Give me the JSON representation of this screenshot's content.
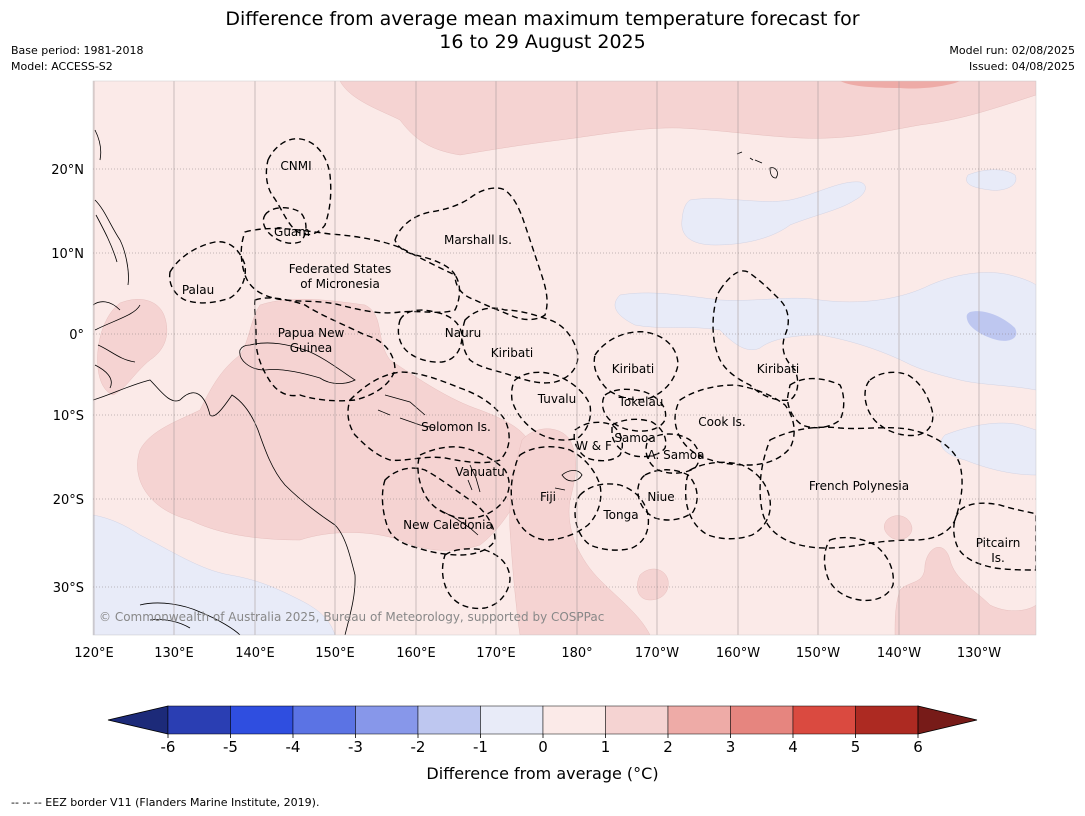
{
  "title_line1": "Difference from average mean maximum temperature forecast for",
  "title_line2": "16 to 29 August 2025",
  "meta_left": {
    "base_period": "Base period: 1981-2018",
    "model": "Model: ACCESS-S2"
  },
  "meta_right": {
    "model_run": "Model run: 02/08/2025",
    "issued": "Issued: 04/08/2025"
  },
  "map": {
    "lon_ticks": [
      "120°E",
      "130°E",
      "140°E",
      "150°E",
      "160°E",
      "170°E",
      "180°",
      "170°W",
      "160°W",
      "150°W",
      "140°W",
      "130°W"
    ],
    "lat_ticks": [
      "20°N",
      "10°N",
      "0°",
      "10°S",
      "20°S",
      "30°S"
    ],
    "region_labels": [
      "CNMI",
      "Guam",
      "Marshall Is.",
      "Federated States",
      "of Micronesia",
      "Palau",
      "Papua New",
      "Guinea",
      "Nauru",
      "Kiribati",
      "Kiribati",
      "Kiribati",
      "Tuvalu",
      "Tokelau",
      "Cook Is.",
      "Solomon Is.",
      "W & F",
      "Samoa",
      "A. Samoa",
      "Vanuatu",
      "Fiji",
      "Niue",
      "French Polynesia",
      "Tonga",
      "New Caledonia",
      "Pitcairn",
      "Is."
    ],
    "copyright": "© Commonwealth of Australia 2025, Bureau of Meteorology, supported by COSPPac",
    "colors": {
      "anom_0_1": "#fbeae8",
      "anom_1_2": "#f5d3d2",
      "anom_2_3": "#eeaba7",
      "anom_m1_0": "#e8ebf8",
      "anom_m2_m1": "#bec7f0",
      "land_line": "#000000",
      "eez_line": "#000000"
    }
  },
  "colorbar": {
    "label": "Difference from average (°C)",
    "ticks": [
      "-6",
      "-5",
      "-4",
      "-3",
      "-2",
      "-1",
      "0",
      "1",
      "2",
      "3",
      "4",
      "5",
      "6"
    ],
    "colors": [
      "#1c2a79",
      "#2a3eb3",
      "#2f4ee0",
      "#5b73e4",
      "#8797ea",
      "#bec7f0",
      "#e8ebf8",
      "#fbeae8",
      "#f5d3d2",
      "#eeaba7",
      "#e6857f",
      "#da4a40",
      "#ad2a22",
      "#771b18"
    ]
  },
  "footnote": "--  --  -- EEZ border V11 (Flanders Marine Institute, 2019)."
}
